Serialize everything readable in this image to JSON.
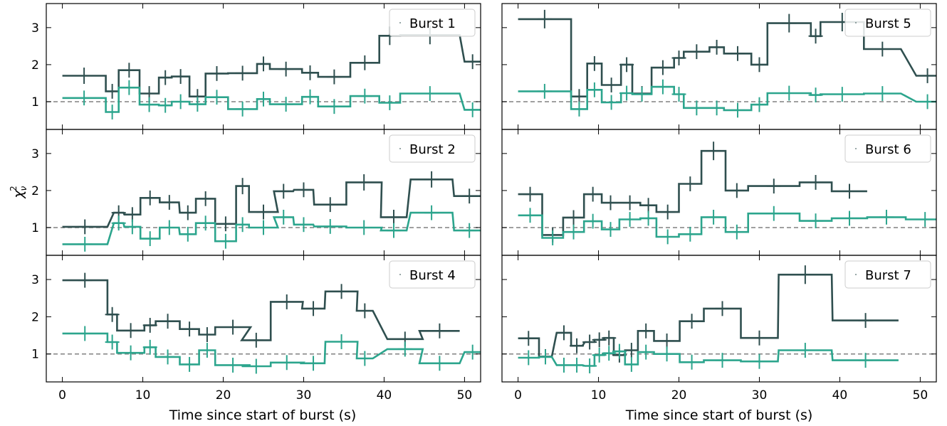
{
  "figure": {
    "ylabel_base": "χ",
    "ylabel_sup": "2",
    "ylabel_sub": "ν",
    "xlabel": "Time since start of burst (s)",
    "colors": {
      "dark": "#2f4f4f",
      "green": "#2ca58d",
      "ref": "#808080"
    },
    "reference_line_y": 1
  },
  "chart_data": [
    {
      "type": "line",
      "legend": "Burst 1",
      "xlim": [
        -2,
        52
      ],
      "ylim": [
        0.25,
        3.65
      ],
      "xticks": [
        0,
        10,
        20,
        30,
        40,
        50
      ],
      "yticks": [
        1,
        2,
        3
      ],
      "series": [
        {
          "color": "dark",
          "x": [
            2.7,
            6.2,
            8.3,
            10.8,
            12.8,
            14.7,
            16.8,
            19.2,
            22.4,
            25.0,
            27.8,
            30.8,
            33.8,
            37.6,
            40.7,
            45.7,
            51.0
          ],
          "xerr": [
            2.7,
            0.8,
            1.3,
            1.2,
            0.8,
            1.1,
            1.0,
            1.4,
            1.8,
            0.8,
            2.0,
            1.0,
            2.0,
            1.8,
            1.3,
            3.7,
            1.0
          ],
          "y": [
            1.7,
            1.28,
            1.85,
            1.22,
            1.65,
            1.68,
            1.14,
            1.76,
            1.77,
            2.02,
            1.88,
            1.78,
            1.67,
            2.05,
            2.78,
            2.8,
            2.08
          ],
          "yerr": [
            0.22,
            0.2,
            0.2,
            0.2,
            0.2,
            0.2,
            0.2,
            0.2,
            0.2,
            0.2,
            0.2,
            0.2,
            0.2,
            0.2,
            0.25,
            0.25,
            0.2
          ]
        },
        {
          "color": "green",
          "x": [
            2.7,
            6.2,
            8.3,
            10.8,
            12.8,
            14.7,
            16.8,
            19.2,
            22.4,
            25.0,
            27.8,
            30.8,
            33.8,
            37.6,
            40.7,
            45.7,
            51.0
          ],
          "xerr": [
            2.7,
            0.8,
            1.3,
            1.2,
            0.8,
            1.1,
            1.0,
            1.4,
            1.8,
            0.8,
            2.0,
            1.0,
            2.0,
            1.8,
            1.3,
            3.7,
            1.0
          ],
          "y": [
            1.1,
            0.72,
            1.38,
            0.92,
            0.9,
            1.0,
            0.93,
            1.12,
            0.8,
            1.07,
            0.93,
            1.13,
            0.87,
            1.15,
            0.97,
            1.22,
            0.78
          ],
          "yerr": [
            0.2,
            0.2,
            0.2,
            0.2,
            0.2,
            0.2,
            0.2,
            0.2,
            0.2,
            0.2,
            0.2,
            0.2,
            0.2,
            0.2,
            0.2,
            0.2,
            0.2
          ]
        }
      ]
    },
    {
      "type": "line",
      "legend": "Burst 5",
      "xlim": [
        -2,
        52
      ],
      "ylim": [
        0.25,
        3.65
      ],
      "xticks": [
        0,
        10,
        20,
        30,
        40,
        50
      ],
      "yticks": [
        1,
        2,
        3
      ],
      "series": [
        {
          "color": "dark",
          "x": [
            3.3,
            7.6,
            9.5,
            11.6,
            13.5,
            15.4,
            18.0,
            20.0,
            22.2,
            24.7,
            27.3,
            30.0,
            33.7,
            37.0,
            40.3,
            45.3,
            50.9
          ],
          "xerr": [
            3.3,
            1.0,
            0.9,
            1.2,
            0.7,
            1.2,
            1.4,
            0.6,
            1.6,
            0.9,
            1.7,
            1.0,
            2.7,
            0.6,
            2.7,
            2.3,
            1.4
          ],
          "y": [
            3.23,
            1.14,
            2.03,
            1.45,
            2.0,
            1.22,
            1.92,
            2.18,
            2.35,
            2.47,
            2.3,
            2.0,
            3.12,
            2.77,
            3.15,
            2.42,
            1.7
          ],
          "yerr": [
            0.25,
            0.2,
            0.2,
            0.2,
            0.2,
            0.2,
            0.2,
            0.2,
            0.2,
            0.2,
            0.2,
            0.2,
            0.25,
            0.2,
            0.25,
            0.2,
            0.2
          ]
        },
        {
          "color": "green",
          "x": [
            3.3,
            7.6,
            9.5,
            11.6,
            13.5,
            15.4,
            18.0,
            20.0,
            22.2,
            24.7,
            27.3,
            30.0,
            33.7,
            37.0,
            40.3,
            45.3,
            50.9
          ],
          "xerr": [
            3.3,
            1.0,
            0.9,
            1.2,
            0.7,
            1.2,
            1.4,
            0.6,
            1.6,
            0.9,
            1.7,
            1.0,
            2.7,
            0.6,
            2.7,
            2.3,
            1.4
          ],
          "y": [
            1.28,
            0.8,
            1.32,
            0.98,
            1.23,
            1.2,
            1.4,
            1.2,
            0.83,
            0.83,
            0.77,
            0.92,
            1.23,
            1.18,
            1.2,
            1.22,
            1.0
          ],
          "yerr": [
            0.2,
            0.2,
            0.2,
            0.2,
            0.2,
            0.2,
            0.2,
            0.2,
            0.2,
            0.2,
            0.2,
            0.2,
            0.2,
            0.2,
            0.2,
            0.2,
            0.2
          ]
        }
      ]
    },
    {
      "type": "line",
      "legend": "Burst 2",
      "xlim": [
        -2,
        52
      ],
      "ylim": [
        0.25,
        3.65
      ],
      "xticks": [
        0,
        10,
        20,
        30,
        40,
        50
      ],
      "yticks": [
        1,
        2,
        3
      ],
      "series": [
        {
          "color": "dark",
          "x": [
            2.8,
            7.0,
            8.7,
            10.9,
            13.3,
            15.6,
            17.8,
            20.3,
            22.4,
            25.0,
            27.5,
            30.0,
            33.3,
            37.5,
            41.2,
            45.9,
            50.6
          ],
          "xerr": [
            2.8,
            0.6,
            1.0,
            1.2,
            1.2,
            1.0,
            1.2,
            1.3,
            0.8,
            1.8,
            1.2,
            1.2,
            2.0,
            2.2,
            1.6,
            2.6,
            1.9
          ],
          "y": [
            1.02,
            1.4,
            1.35,
            1.8,
            1.68,
            1.4,
            1.78,
            1.1,
            2.12,
            1.42,
            1.98,
            2.02,
            1.62,
            2.22,
            1.28,
            2.3,
            1.85
          ],
          "yerr": [
            0.2,
            0.2,
            0.2,
            0.2,
            0.2,
            0.2,
            0.2,
            0.2,
            0.22,
            0.2,
            0.2,
            0.2,
            0.2,
            0.22,
            0.2,
            0.22,
            0.2
          ]
        },
        {
          "color": "green",
          "x": [
            2.8,
            7.0,
            8.7,
            10.9,
            13.3,
            15.6,
            17.8,
            20.3,
            22.4,
            25.0,
            27.5,
            30.0,
            33.3,
            37.5,
            41.2,
            45.9,
            50.6
          ],
          "xerr": [
            2.8,
            0.6,
            1.0,
            1.2,
            1.2,
            1.0,
            1.2,
            1.3,
            0.8,
            1.8,
            1.2,
            1.2,
            2.0,
            2.2,
            1.6,
            2.6,
            1.9
          ],
          "y": [
            0.55,
            1.12,
            1.02,
            0.7,
            1.0,
            0.82,
            1.12,
            0.63,
            1.08,
            1.0,
            1.28,
            1.08,
            1.03,
            1.0,
            0.92,
            1.4,
            0.92
          ],
          "yerr": [
            0.2,
            0.2,
            0.2,
            0.2,
            0.2,
            0.2,
            0.2,
            0.2,
            0.2,
            0.2,
            0.2,
            0.2,
            0.2,
            0.2,
            0.2,
            0.2,
            0.2
          ]
        }
      ]
    },
    {
      "type": "line",
      "legend": "Burst 6",
      "xlim": [
        -2,
        52
      ],
      "ylim": [
        0.25,
        3.65
      ],
      "xticks": [
        0,
        10,
        20,
        30,
        40,
        50
      ],
      "yticks": [
        1,
        2,
        3
      ],
      "series": [
        {
          "color": "dark",
          "x": [
            1.5,
            4.3,
            6.9,
            9.3,
            11.5,
            13.9,
            16.2,
            18.6,
            21.4,
            24.3,
            27.2,
            31.8,
            37.0,
            41.2
          ],
          "xerr": [
            1.5,
            1.3,
            1.3,
            1.1,
            1.1,
            1.3,
            1.0,
            1.4,
            1.4,
            1.5,
            1.4,
            3.2,
            2.0,
            2.2
          ],
          "y": [
            1.9,
            0.8,
            1.27,
            1.9,
            1.67,
            1.67,
            1.6,
            1.42,
            2.18,
            3.07,
            2.0,
            2.12,
            2.22,
            1.98
          ],
          "yerr": [
            0.2,
            0.2,
            0.2,
            0.2,
            0.2,
            0.2,
            0.2,
            0.2,
            0.2,
            0.25,
            0.2,
            0.2,
            0.2,
            0.2
          ]
        },
        {
          "color": "green",
          "x": [
            1.5,
            4.3,
            6.9,
            9.3,
            11.5,
            13.9,
            16.2,
            18.6,
            21.4,
            24.3,
            27.2,
            31.8,
            37.0,
            41.2,
            45.8,
            50.6
          ],
          "xerr": [
            1.5,
            1.3,
            1.3,
            1.1,
            1.1,
            1.3,
            1.0,
            1.4,
            1.4,
            1.5,
            1.4,
            3.2,
            2.0,
            2.2,
            2.4,
            2.4
          ],
          "y": [
            1.33,
            0.72,
            0.88,
            1.17,
            0.95,
            1.22,
            1.25,
            0.75,
            0.82,
            1.28,
            0.88,
            1.38,
            1.18,
            1.25,
            1.28,
            1.22
          ],
          "yerr": [
            0.2,
            0.2,
            0.2,
            0.2,
            0.2,
            0.2,
            0.2,
            0.2,
            0.2,
            0.2,
            0.2,
            0.2,
            0.2,
            0.2,
            0.2,
            0.2
          ]
        }
      ]
    },
    {
      "type": "line",
      "legend": "Burst 4",
      "xlim": [
        -2,
        52
      ],
      "ylim": [
        0.25,
        3.65
      ],
      "xticks": [
        0,
        10,
        20,
        30,
        40,
        50
      ],
      "yticks": [
        1,
        2,
        3
      ],
      "series": [
        {
          "color": "dark",
          "x": [
            2.8,
            6.2,
            8.5,
            10.9,
            13.1,
            15.8,
            18.0,
            21.2,
            24.1,
            27.9,
            31.2,
            34.7,
            37.6,
            42.6,
            46.9
          ],
          "xerr": [
            2.8,
            0.6,
            1.7,
            0.7,
            1.5,
            1.2,
            1.0,
            2.2,
            1.8,
            2.0,
            1.4,
            2.0,
            1.0,
            2.2,
            2.5
          ],
          "y": [
            2.98,
            2.06,
            1.63,
            1.77,
            1.88,
            1.67,
            1.52,
            1.72,
            1.37,
            2.4,
            2.22,
            2.68,
            2.16,
            1.4,
            1.62
          ],
          "yerr": [
            0.2,
            0.2,
            0.2,
            0.2,
            0.2,
            0.2,
            0.2,
            0.2,
            0.2,
            0.2,
            0.2,
            0.2,
            0.2,
            0.2,
            0.2
          ]
        },
        {
          "color": "green",
          "x": [
            2.8,
            6.2,
            8.5,
            10.9,
            13.1,
            15.8,
            18.0,
            21.2,
            24.1,
            27.9,
            31.2,
            34.7,
            37.6,
            42.6,
            46.9,
            51.0
          ],
          "xerr": [
            2.8,
            0.6,
            1.7,
            0.7,
            1.5,
            1.2,
            1.0,
            2.2,
            1.8,
            2.0,
            1.4,
            2.0,
            1.0,
            2.2,
            2.5,
            1.0
          ],
          "y": [
            1.55,
            1.32,
            1.03,
            1.18,
            0.92,
            0.72,
            1.1,
            0.7,
            0.67,
            0.77,
            0.75,
            1.33,
            0.88,
            1.13,
            0.75,
            1.05
          ],
          "yerr": [
            0.2,
            0.2,
            0.2,
            0.2,
            0.2,
            0.2,
            0.2,
            0.2,
            0.2,
            0.2,
            0.2,
            0.2,
            0.2,
            0.2,
            0.2,
            0.2
          ]
        }
      ]
    },
    {
      "type": "line",
      "legend": "Burst 7",
      "xlim": [
        -2,
        52
      ],
      "ylim": [
        0.25,
        3.65
      ],
      "xticks": [
        0,
        10,
        20,
        30,
        40,
        50
      ],
      "yticks": [
        1,
        2,
        3
      ],
      "series": [
        {
          "color": "dark",
          "x": [
            1.3,
            3.4,
            5.7,
            7.3,
            8.9,
            10.1,
            11.3,
            12.6,
            14.1,
            15.9,
            18.5,
            21.6,
            25.4,
            30.0,
            35.7,
            43.2
          ],
          "xerr": [
            1.3,
            0.8,
            0.9,
            0.7,
            0.6,
            0.6,
            0.6,
            0.7,
            0.8,
            1.0,
            1.6,
            1.5,
            2.3,
            2.3,
            3.3,
            4.1
          ],
          "y": [
            1.42,
            0.93,
            1.57,
            1.22,
            1.32,
            1.38,
            1.43,
            0.97,
            1.1,
            1.62,
            1.35,
            1.88,
            2.22,
            1.43,
            3.13,
            1.9
          ],
          "yerr": [
            0.2,
            0.2,
            0.2,
            0.2,
            0.2,
            0.2,
            0.2,
            0.2,
            0.2,
            0.2,
            0.2,
            0.2,
            0.2,
            0.2,
            0.25,
            0.2
          ]
        },
        {
          "color": "green",
          "x": [
            1.3,
            3.4,
            5.7,
            7.3,
            8.9,
            10.1,
            11.3,
            12.6,
            14.1,
            15.9,
            18.5,
            21.6,
            25.4,
            30.0,
            35.7,
            43.2
          ],
          "xerr": [
            1.3,
            0.8,
            0.9,
            0.7,
            0.6,
            0.6,
            0.6,
            0.7,
            0.8,
            1.0,
            1.6,
            1.5,
            2.3,
            2.3,
            3.3,
            4.1
          ],
          "y": [
            0.9,
            0.92,
            0.7,
            0.7,
            0.68,
            0.97,
            1.02,
            1.07,
            0.72,
            1.05,
            1.0,
            0.78,
            0.83,
            0.8,
            1.1,
            0.83
          ],
          "yerr": [
            0.2,
            0.2,
            0.2,
            0.2,
            0.2,
            0.2,
            0.2,
            0.2,
            0.2,
            0.2,
            0.2,
            0.2,
            0.2,
            0.2,
            0.2,
            0.2
          ]
        }
      ]
    }
  ]
}
